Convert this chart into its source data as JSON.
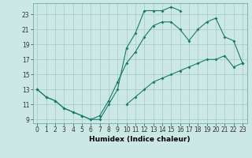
{
  "title": "",
  "xlabel": "Humidex (Indice chaleur)",
  "bg_color": "#cce8e4",
  "grid_color": "#aaceca",
  "line_color": "#1a7a6e",
  "xlim": [
    -0.5,
    23.5
  ],
  "ylim": [
    8.5,
    24.5
  ],
  "xticks": [
    0,
    1,
    2,
    3,
    4,
    5,
    6,
    7,
    8,
    9,
    10,
    11,
    12,
    13,
    14,
    15,
    16,
    17,
    18,
    19,
    20,
    21,
    22,
    23
  ],
  "yticks": [
    9,
    11,
    13,
    15,
    17,
    19,
    21,
    23
  ],
  "lines": [
    {
      "x": [
        0,
        1,
        2,
        3,
        4,
        5,
        6,
        7,
        8,
        9,
        10,
        11,
        12,
        13,
        14,
        15,
        16
      ],
      "y": [
        13,
        12,
        11.5,
        10.5,
        10,
        9.5,
        9,
        9,
        11,
        13,
        18.5,
        20.5,
        23.5,
        23.5,
        23.5,
        24,
        23.5
      ]
    },
    {
      "x": [
        0,
        1,
        2,
        3,
        4,
        5,
        6,
        7,
        8,
        9,
        10,
        11,
        12,
        13,
        14,
        15,
        16,
        17,
        18,
        19,
        20,
        21,
        22,
        23
      ],
      "y": [
        13,
        12,
        11.5,
        10.5,
        10,
        9.5,
        9,
        9.5,
        11.5,
        14,
        16.5,
        18,
        20,
        21.5,
        22,
        22,
        21,
        19.5,
        21,
        22,
        22.5,
        20,
        19.5,
        16.5
      ]
    },
    {
      "x": [
        10,
        11,
        12,
        13,
        14,
        15,
        16,
        17,
        18,
        19,
        20,
        21,
        22,
        23
      ],
      "y": [
        11,
        12,
        13,
        14,
        14.5,
        15,
        15.5,
        16,
        16.5,
        17,
        17,
        17.5,
        16,
        16.5
      ]
    }
  ]
}
